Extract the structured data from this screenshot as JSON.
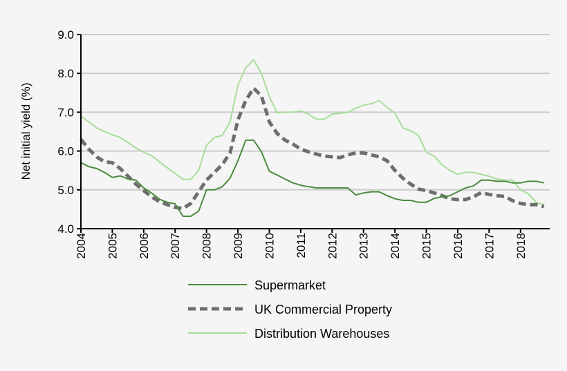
{
  "chart_data": {
    "type": "line",
    "title": "",
    "xlabel": "",
    "ylabel": "Net initial yield (%)",
    "ylim": [
      4.0,
      9.0
    ],
    "yticks": [
      "4.0",
      "5.0",
      "6.0",
      "7.0",
      "8.0",
      "9.0"
    ],
    "xticks": [
      "2004",
      "2005",
      "2006",
      "2007",
      "2008",
      "2009",
      "2010",
      "2011",
      "2012",
      "2013",
      "2014",
      "2015",
      "2016",
      "2017",
      "2018"
    ],
    "x_start": 2004,
    "x_step": 0.25,
    "grid": true,
    "legend": "bottom",
    "series": [
      {
        "name": "Supermarket",
        "color": "#4a8a3c",
        "style": "solid",
        "values": [
          5.7,
          5.6,
          5.55,
          5.45,
          5.32,
          5.36,
          5.28,
          5.25,
          5.05,
          4.92,
          4.76,
          4.68,
          4.64,
          4.32,
          4.32,
          4.45,
          5.0,
          5.0,
          5.08,
          5.3,
          5.75,
          6.28,
          6.28,
          5.98,
          5.48,
          5.38,
          5.28,
          5.18,
          5.12,
          5.08,
          5.05,
          5.05,
          5.05,
          5.05,
          5.05,
          4.87,
          4.92,
          4.95,
          4.95,
          4.85,
          4.77,
          4.73,
          4.73,
          4.68,
          4.68,
          4.78,
          4.82,
          4.85,
          4.95,
          5.05,
          5.1,
          5.25,
          5.25,
          5.22,
          5.22,
          5.18,
          5.18,
          5.22,
          5.22,
          5.18
        ]
      },
      {
        "name": "UK Commercial Property",
        "color": "#6e6e6e",
        "style": "dashed",
        "values": [
          6.3,
          6.05,
          5.85,
          5.72,
          5.7,
          5.55,
          5.35,
          5.15,
          4.98,
          4.82,
          4.7,
          4.62,
          4.55,
          4.52,
          4.65,
          4.95,
          5.25,
          5.45,
          5.65,
          5.95,
          6.8,
          7.3,
          7.62,
          7.42,
          6.75,
          6.45,
          6.28,
          6.18,
          6.05,
          5.98,
          5.92,
          5.87,
          5.85,
          5.83,
          5.9,
          5.95,
          5.95,
          5.9,
          5.85,
          5.75,
          5.5,
          5.3,
          5.15,
          5.02,
          4.98,
          4.92,
          4.85,
          4.77,
          4.75,
          4.75,
          4.82,
          4.93,
          4.88,
          4.85,
          4.83,
          4.72,
          4.65,
          4.62,
          4.62,
          4.57
        ]
      },
      {
        "name": "Distribution Warehouses",
        "color": "#a8dc9a",
        "style": "solid",
        "values": [
          6.9,
          6.75,
          6.6,
          6.5,
          6.42,
          6.35,
          6.22,
          6.08,
          5.97,
          5.88,
          5.72,
          5.57,
          5.42,
          5.27,
          5.27,
          5.5,
          6.15,
          6.35,
          6.4,
          6.75,
          7.7,
          8.15,
          8.35,
          8.0,
          7.4,
          6.98,
          7.0,
          7.0,
          7.03,
          6.95,
          6.82,
          6.82,
          6.95,
          6.97,
          7.0,
          7.1,
          7.18,
          7.22,
          7.3,
          7.12,
          6.98,
          6.6,
          6.52,
          6.4,
          5.97,
          5.87,
          5.65,
          5.5,
          5.4,
          5.45,
          5.45,
          5.4,
          5.35,
          5.28,
          5.25,
          5.25,
          5.0,
          4.9,
          4.68,
          4.62
        ]
      }
    ]
  }
}
